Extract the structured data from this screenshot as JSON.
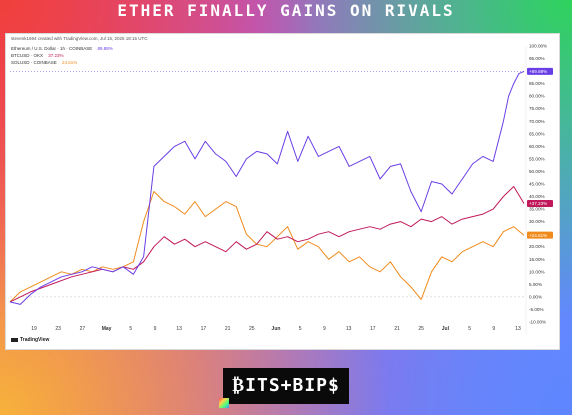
{
  "headline": "ETHER FINALLY GAINS ON RIVALS",
  "meta": "stevenk1694 created with TradingView.com, Jul 15, 2025 18:15 UTC",
  "brand": "₿ITS+BIP$",
  "tv_logo": "TradingView",
  "colors": {
    "eth": "#6a3ee6",
    "btc": "#c0185a",
    "sol": "#f08a1c",
    "frame": "#d9d9d9"
  },
  "chart_data": {
    "type": "line",
    "y_axis_labels": [
      "100.00%",
      "95.00%",
      "90.00%",
      "85.00%",
      "80.00%",
      "75.00%",
      "70.00%",
      "65.00%",
      "60.00%",
      "55.00%",
      "50.00%",
      "45.00%",
      "40.00%",
      "35.00%",
      "30.00%",
      "25.00%",
      "20.00%",
      "15.00%",
      "10.00%",
      "5.00%",
      "0.00%",
      "-5.00%",
      "-10.00%"
    ],
    "x_axis_labels": [
      "19",
      "23",
      "27",
      "May",
      "5",
      "9",
      "13",
      "17",
      "21",
      "25",
      "Jun",
      "5",
      "9",
      "13",
      "17",
      "21",
      "25",
      "Jul",
      "5",
      "9",
      "13"
    ],
    "ylim": [
      -10,
      100
    ],
    "grid": false,
    "legend_position": "top-left",
    "series": [
      {
        "name": "Ethereum / U.S. Dollar · 1h · COINBASE",
        "legend_value": "89.88%",
        "last_value_label": "+89.88%",
        "x": [
          0,
          2,
          4,
          6,
          8,
          10,
          12,
          14,
          15,
          16,
          18,
          20,
          22,
          24,
          26,
          28,
          30,
          32,
          34,
          36,
          38,
          40,
          42,
          44,
          46,
          48,
          50,
          52,
          54,
          56,
          58,
          60,
          62,
          64,
          66,
          68,
          70,
          72,
          74,
          76,
          78,
          80,
          82,
          84,
          86,
          88,
          90,
          92,
          94,
          96,
          97,
          98,
          99,
          100
        ],
        "y": [
          -2,
          -3,
          1,
          4,
          6,
          8,
          9,
          10,
          11,
          12,
          11,
          10,
          12,
          9,
          16,
          52,
          56,
          60,
          62,
          55,
          62,
          57,
          54,
          48,
          55,
          58,
          57,
          53,
          66,
          54,
          64,
          56,
          58,
          60,
          52,
          54,
          56,
          47,
          52,
          53,
          42,
          34,
          46,
          45,
          41,
          47,
          53,
          56,
          54,
          70,
          80,
          85,
          89,
          89.88
        ]
      },
      {
        "name": "BTCUSD · OKX",
        "legend_value": "37.23%",
        "last_value_label": "+37.23%",
        "x": [
          0,
          4,
          8,
          12,
          14,
          16,
          18,
          20,
          22,
          24,
          26,
          28,
          30,
          32,
          34,
          36,
          38,
          40,
          42,
          44,
          46,
          48,
          50,
          52,
          54,
          56,
          58,
          60,
          62,
          64,
          66,
          68,
          70,
          72,
          74,
          76,
          78,
          80,
          82,
          84,
          86,
          88,
          90,
          92,
          94,
          96,
          98,
          100
        ],
        "y": [
          -2,
          2,
          5,
          8,
          9,
          10,
          11,
          10,
          12,
          11,
          14,
          20,
          24,
          21,
          23,
          20,
          22,
          20,
          18,
          22,
          19,
          21,
          26,
          23,
          24,
          22,
          23,
          25,
          26,
          24,
          26,
          27,
          28,
          27,
          29,
          30,
          28,
          31,
          30,
          32,
          29,
          31,
          32,
          33,
          35,
          40,
          44,
          37.23
        ]
      },
      {
        "name": "SOLUSD · COINBASE",
        "legend_value": "24.61%",
        "last_value_label": "+24.61%",
        "x": [
          0,
          2,
          4,
          6,
          8,
          10,
          12,
          14,
          16,
          18,
          20,
          22,
          24,
          26,
          28,
          30,
          32,
          34,
          36,
          38,
          40,
          42,
          44,
          46,
          48,
          50,
          52,
          54,
          56,
          58,
          60,
          62,
          64,
          66,
          68,
          70,
          72,
          74,
          76,
          78,
          80,
          82,
          84,
          86,
          88,
          90,
          92,
          94,
          96,
          98,
          100
        ],
        "y": [
          -2,
          2,
          4,
          6,
          8,
          10,
          9,
          11,
          10,
          12,
          11,
          12,
          14,
          30,
          42,
          38,
          36,
          33,
          38,
          32,
          35,
          38,
          36,
          25,
          21,
          20,
          24,
          28,
          19,
          22,
          20,
          15,
          18,
          14,
          16,
          12,
          10,
          14,
          8,
          4,
          -1,
          10,
          16,
          14,
          18,
          20,
          22,
          20,
          26,
          28,
          24.61
        ]
      }
    ]
  }
}
